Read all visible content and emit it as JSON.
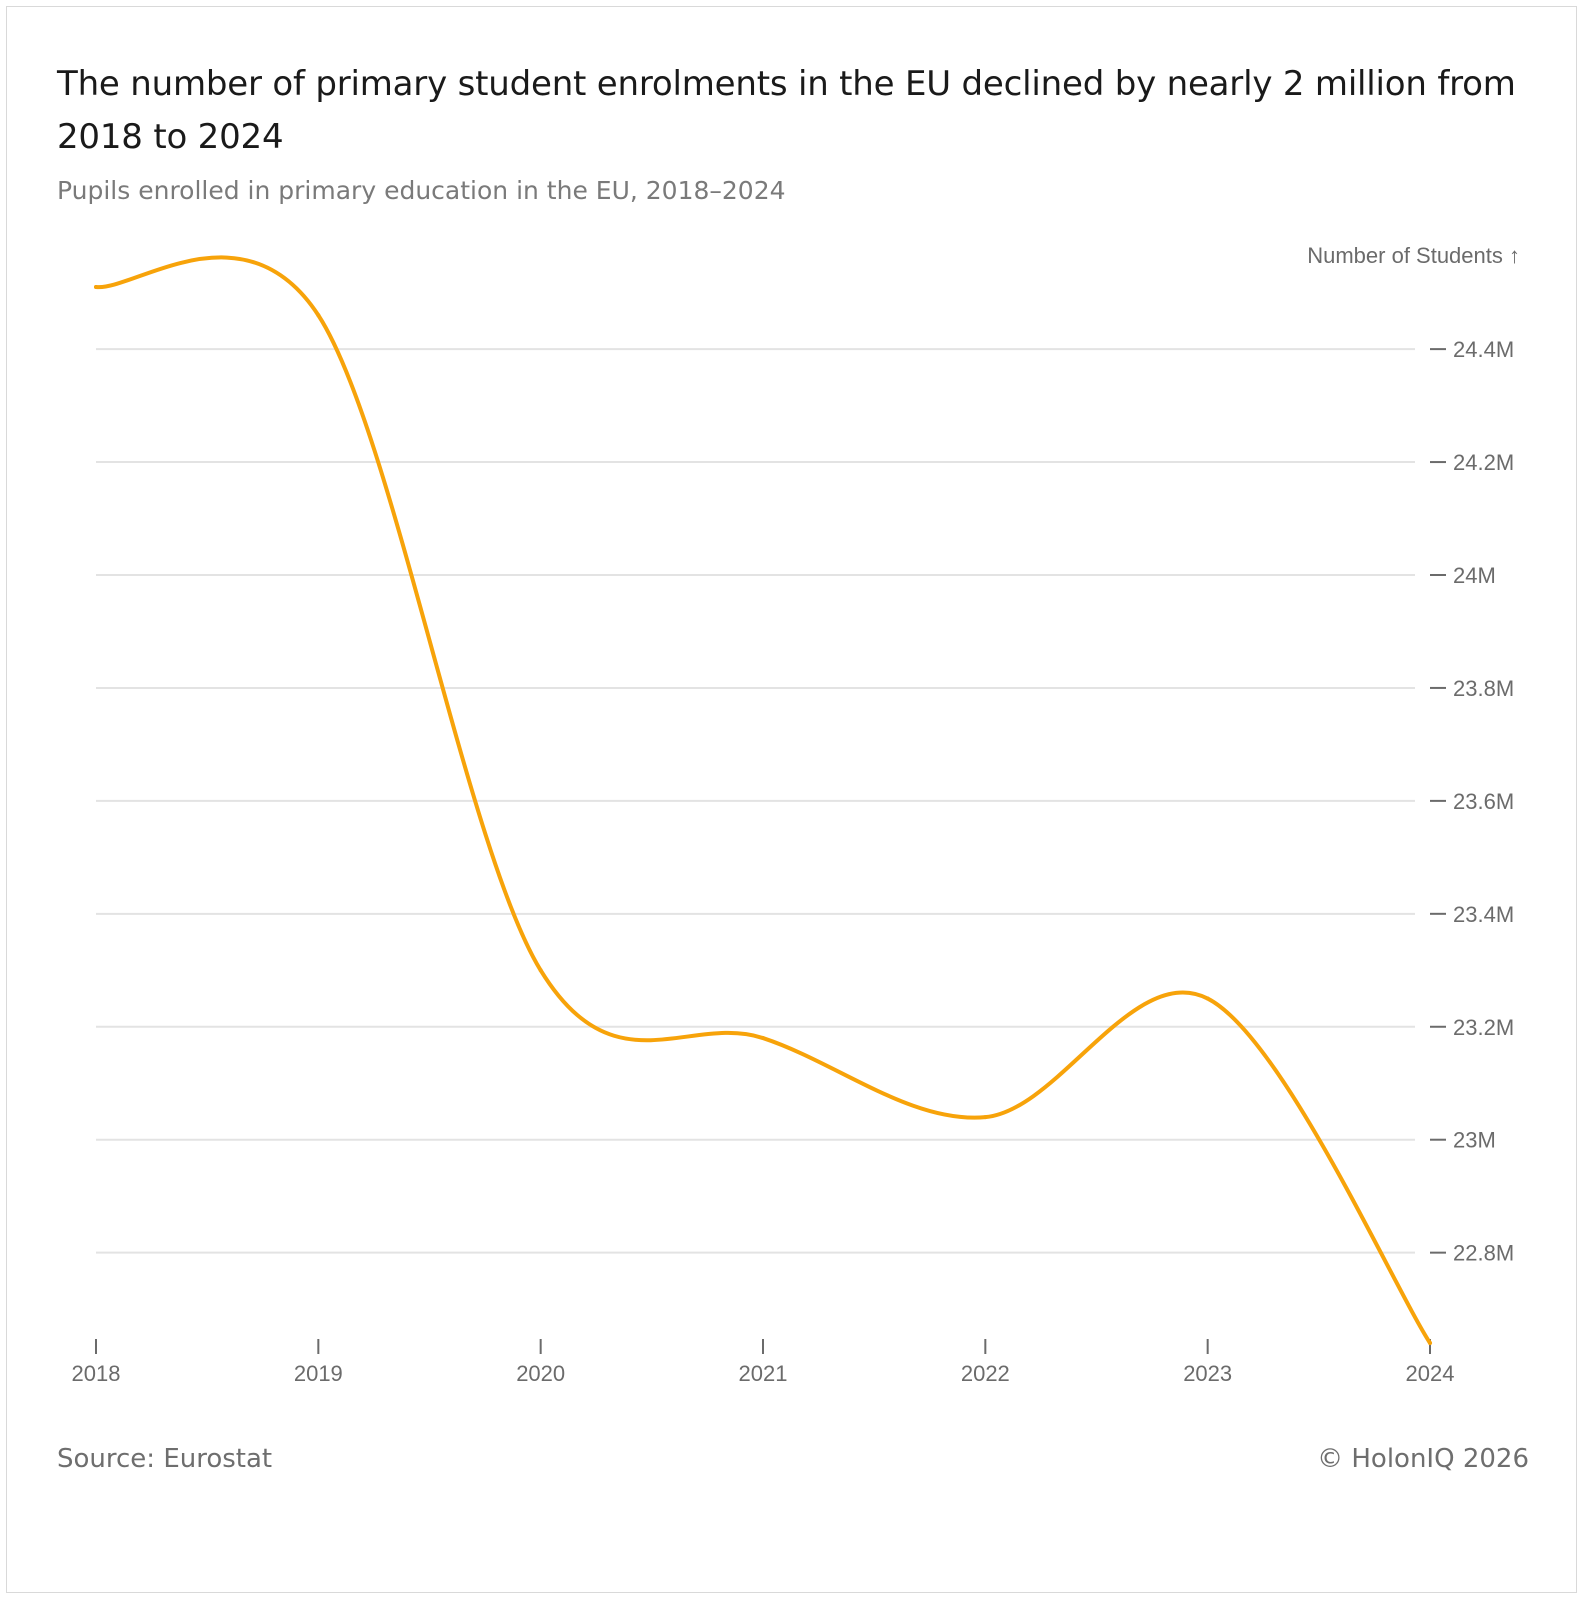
{
  "header": {
    "title": "The number of primary student enrolments in the EU declined by nearly 2 million from 2018 to 2024",
    "subtitle": "Pupils enrolled in primary education in the EU, 2018–2024"
  },
  "footer": {
    "source": "Source: Eurostat",
    "copyright": "© HolonIQ 2026"
  },
  "colors": {
    "line": "#F7A30A",
    "grid": "#e3e3e3",
    "axis_text": "#6b6b6b"
  },
  "chart_data": {
    "type": "line",
    "curve": "smooth",
    "series": [
      {
        "name": "Number of Students",
        "values": [
          24.51,
          24.46,
          23.3,
          23.18,
          23.04,
          23.25,
          22.64
        ]
      }
    ],
    "x": [
      2018,
      2019,
      2020,
      2021,
      2022,
      2023,
      2024
    ],
    "x_tick_labels": [
      "2018",
      "2019",
      "2020",
      "2021",
      "2022",
      "2023",
      "2024"
    ],
    "y_ticks": [
      22.8,
      23.0,
      23.2,
      23.4,
      23.6,
      23.8,
      24.0,
      24.2,
      24.4
    ],
    "y_tick_labels": [
      "22.8M",
      "23M",
      "23.2M",
      "23.4M",
      "23.6M",
      "23.8M",
      "24M",
      "24.2M",
      "24.4M"
    ],
    "ylabel": "Number of Students ↑",
    "ylim": [
      22.64,
      24.51
    ],
    "y_axis_side": "right",
    "grid": true
  }
}
